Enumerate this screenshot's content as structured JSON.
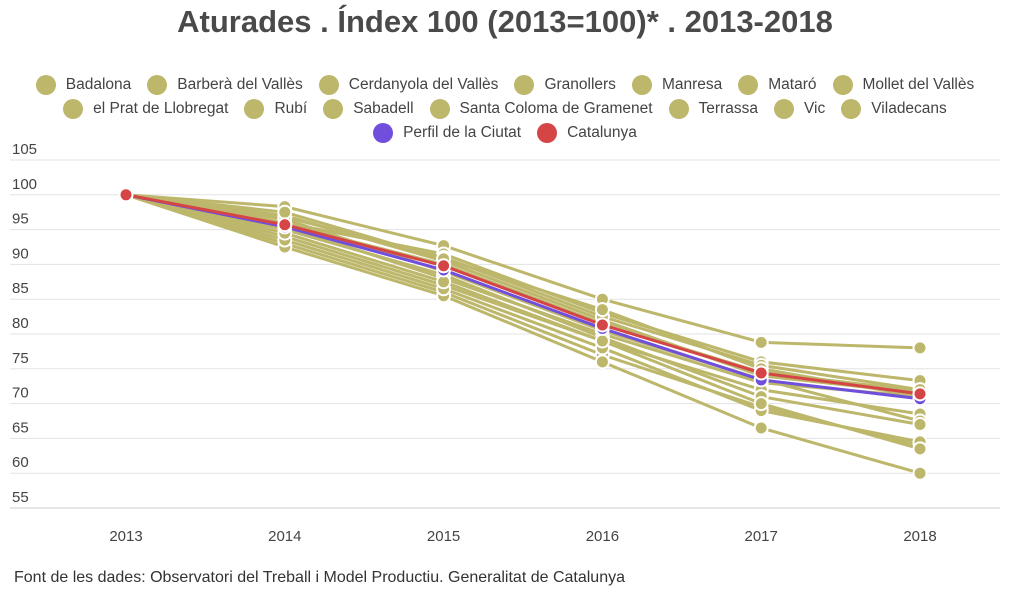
{
  "chart_data": {
    "type": "line",
    "title": "Aturades . Índex 100 (2013=100)* . 2013-2018",
    "source": "Font de les dades: Observatori del Treball i Model Productiu. Generalitat de Catalunya",
    "x": [
      "2013",
      "2014",
      "2015",
      "2016",
      "2017",
      "2018"
    ],
    "ylim": [
      55,
      105
    ],
    "yticks": [
      "105",
      "100",
      "95",
      "90",
      "85",
      "80",
      "75",
      "70",
      "65",
      "60",
      "55"
    ],
    "grid": true,
    "legend_position": "top",
    "colors": {
      "municipality": "#bdb76b",
      "profile": "#6f4fdb",
      "catalunya": "#d64545"
    },
    "series": [
      {
        "name": "Badalona",
        "values": [
          100,
          93.0,
          86.0,
          77.0,
          69.5,
          64.0
        ],
        "color": "#bdb76b"
      },
      {
        "name": "Barberà del Vallès",
        "values": [
          100,
          98.3,
          92.7,
          85.0,
          78.8,
          78.0
        ],
        "color": "#bdb76b"
      },
      {
        "name": "Cerdanyola del Vallès",
        "values": [
          100,
          96.0,
          91.5,
          83.0,
          76.0,
          73.3
        ],
        "color": "#bdb76b"
      },
      {
        "name": "Granollers",
        "values": [
          100,
          95.5,
          88.0,
          80.0,
          73.0,
          71.0
        ],
        "color": "#bdb76b"
      },
      {
        "name": "Manresa",
        "values": [
          100,
          94.0,
          87.0,
          79.0,
          72.0,
          68.5
        ],
        "color": "#bdb76b"
      },
      {
        "name": "Mataró",
        "values": [
          100,
          97.0,
          90.5,
          82.0,
          74.0,
          71.5
        ],
        "color": "#bdb76b"
      },
      {
        "name": "Mollet del Vallès",
        "values": [
          100,
          92.5,
          85.5,
          76.0,
          66.5,
          60.0
        ],
        "color": "#bdb76b"
      },
      {
        "name": "el Prat de Llobregat",
        "values": [
          100,
          96.5,
          89.0,
          80.5,
          73.5,
          67.5
        ],
        "color": "#bdb76b"
      },
      {
        "name": "Rubí",
        "values": [
          100,
          95.0,
          88.5,
          79.5,
          71.0,
          67.0
        ],
        "color": "#bdb76b"
      },
      {
        "name": "Sabadell",
        "values": [
          100,
          95.8,
          90.0,
          81.5,
          74.5,
          71.8
        ],
        "color": "#bdb76b"
      },
      {
        "name": "Santa Coloma de Gramenet",
        "values": [
          100,
          93.5,
          86.5,
          78.0,
          69.0,
          64.5
        ],
        "color": "#bdb76b"
      },
      {
        "name": "Terrassa",
        "values": [
          100,
          96.8,
          91.0,
          82.5,
          75.5,
          72.0
        ],
        "color": "#bdb76b"
      },
      {
        "name": "Vic",
        "values": [
          100,
          94.5,
          87.5,
          79.0,
          70.0,
          63.5
        ],
        "color": "#bdb76b"
      },
      {
        "name": "Viladecans",
        "values": [
          100,
          97.5,
          90.8,
          83.5,
          75.0,
          71.0
        ],
        "color": "#bdb76b"
      },
      {
        "name": "Perfil de la Ciutat",
        "values": [
          100,
          95.4,
          89.2,
          80.8,
          73.4,
          70.7
        ],
        "color": "#6f4fdb"
      },
      {
        "name": "Catalunya",
        "values": [
          100,
          95.7,
          89.8,
          81.3,
          74.4,
          71.4
        ],
        "color": "#d64545"
      }
    ]
  }
}
